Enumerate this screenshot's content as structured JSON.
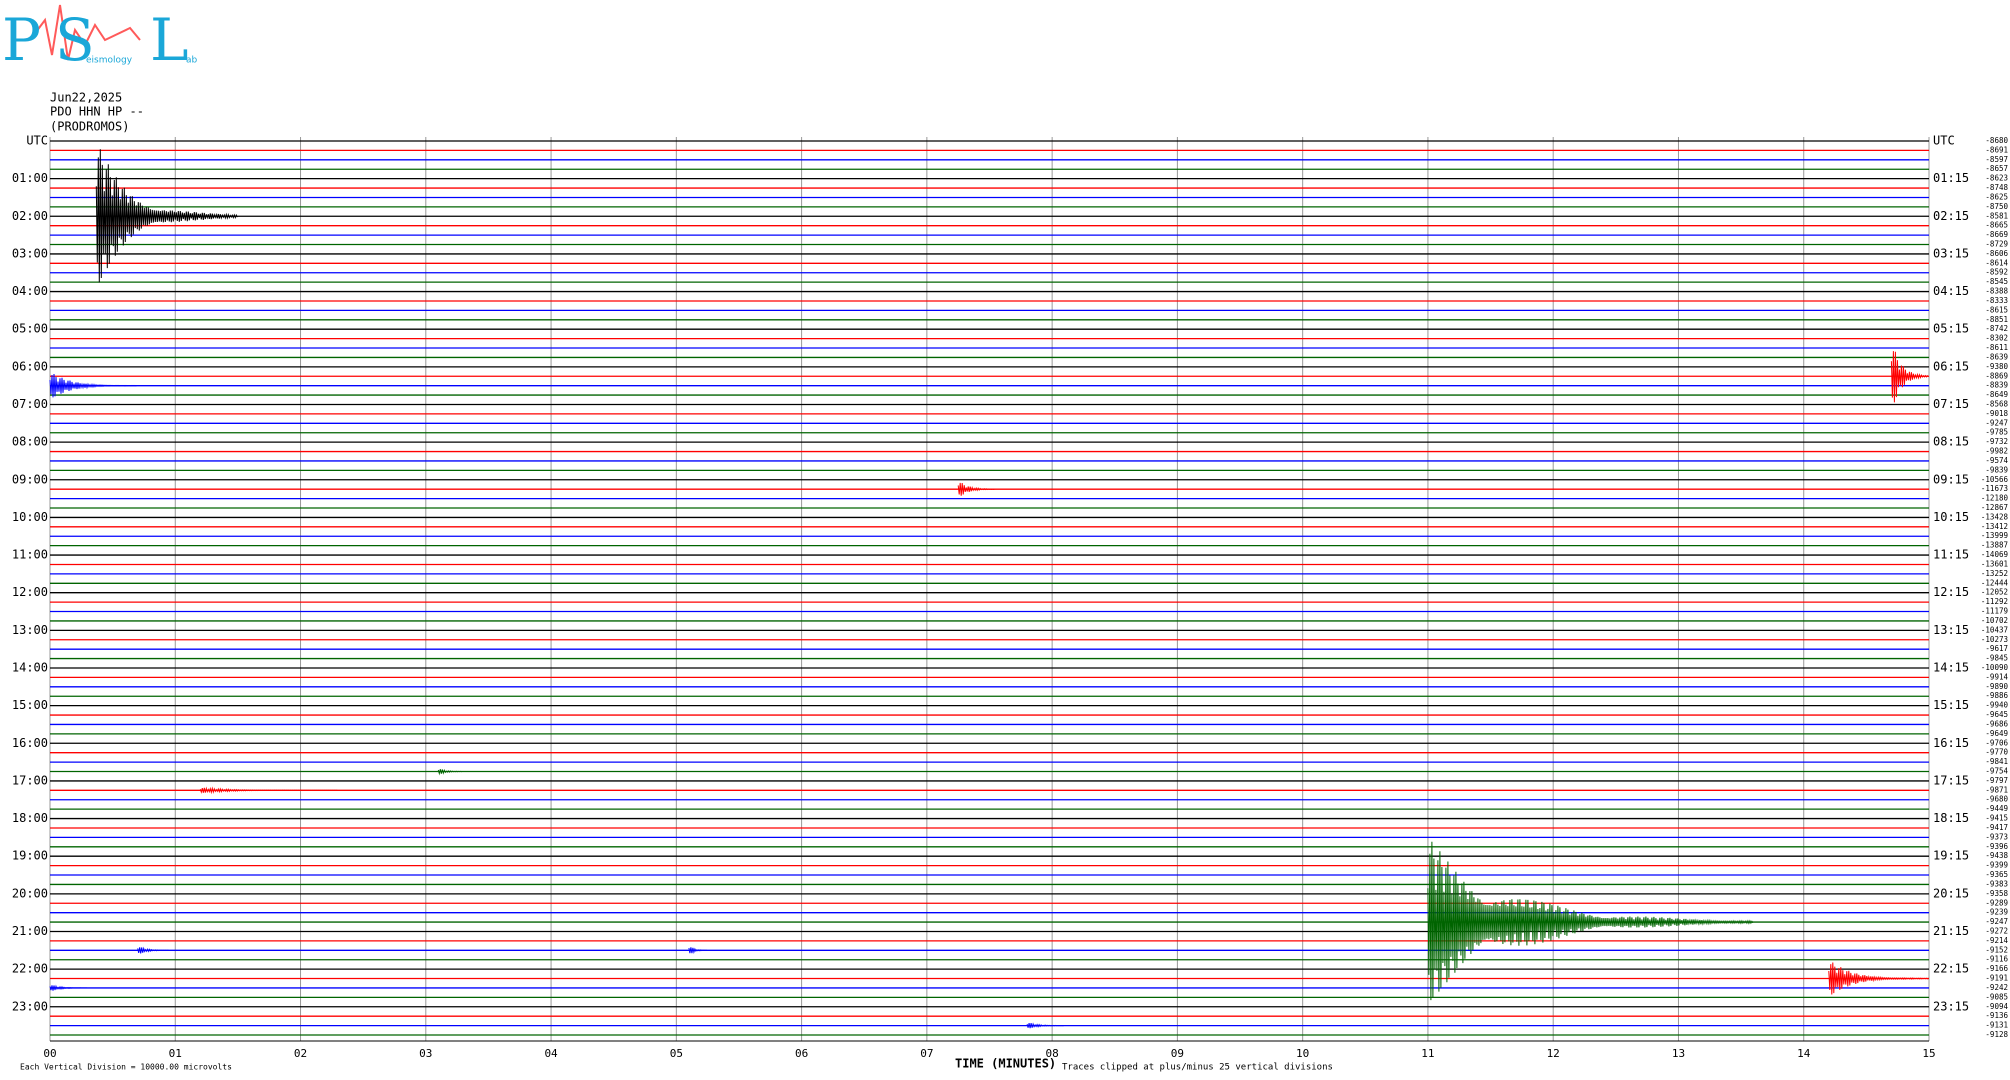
{
  "logo": {
    "letters": [
      "P",
      "S",
      "L"
    ],
    "fragments": [
      "eismology",
      "ab"
    ]
  },
  "header": {
    "date": "Jun22,2025",
    "station": "PDO HHN HP --",
    "site": "(PRODROMOS)"
  },
  "chart_data": {
    "type": "helicorder",
    "xlabel": "TIME (MINUTES)",
    "scale_note": "Each Vertical Division = 10000.00 microvolts",
    "clip_note": "Traces clipped at plus/minus 25 vertical divisions",
    "xlim": [
      0,
      15
    ],
    "xticks": [
      {
        "value": 0,
        "label": "00"
      },
      {
        "value": 1,
        "label": "01"
      },
      {
        "value": 2,
        "label": "02"
      },
      {
        "value": 3,
        "label": "03"
      },
      {
        "value": 4,
        "label": "04"
      },
      {
        "value": 5,
        "label": "05"
      },
      {
        "value": 6,
        "label": "06"
      },
      {
        "value": 7,
        "label": "07"
      },
      {
        "value": 8,
        "label": "08"
      },
      {
        "value": 9,
        "label": "09"
      },
      10,
      11,
      12,
      13,
      14,
      15
    ],
    "grid": true,
    "colors": [
      "#000000",
      "#ff0000",
      "#0000ff",
      "#006400"
    ],
    "rows_per_label": 4,
    "left_labels": [
      "UTC",
      "01:00",
      "02:00",
      "03:00",
      "04:00",
      "05:00",
      "06:00",
      "07:00",
      "08:00",
      "09:00",
      "10:00",
      "11:00",
      "12:00",
      "13:00",
      "14:00",
      "15:00",
      "16:00",
      "17:00",
      "18:00",
      "19:00",
      "20:00",
      "21:00",
      "22:00",
      "23:00"
    ],
    "right_labels": [
      "UTC",
      "01:15",
      "02:15",
      "03:15",
      "04:15",
      "05:15",
      "06:15",
      "07:15",
      "08:15",
      "09:15",
      "10:15",
      "11:15",
      "12:15",
      "13:15",
      "14:15",
      "15:15",
      "16:15",
      "17:15",
      "18:15",
      "19:15",
      "20:15",
      "21:15",
      "22:15",
      "23:15"
    ],
    "offsets": [
      -8680,
      -8691,
      -8597,
      -8657,
      -8623,
      -8748,
      -8625,
      -8750,
      -8581,
      -8665,
      -8669,
      -8729,
      -8606,
      -8614,
      -8592,
      -8545,
      -8388,
      -8333,
      -8615,
      -8851,
      -8742,
      -8302,
      -8611,
      -8639,
      -9380,
      -8869,
      -8839,
      -8649,
      -8568,
      -9018,
      -9247,
      -9785,
      -9732,
      -9982,
      -9574,
      -9839,
      -10566,
      -11673,
      -12180,
      -12867,
      -13428,
      -13412,
      -13999,
      -13887,
      -14069,
      -13601,
      -13252,
      -12444,
      -12052,
      -11292,
      -11179,
      -10702,
      -10437,
      -10273,
      -9617,
      -9845,
      -10090,
      -9914,
      -9890,
      -9886,
      -9940,
      -9645,
      -9686,
      -9649,
      -9706,
      -9770,
      -9841,
      -9754,
      -9797,
      -9871,
      -9680,
      -9449,
      -9415,
      -9417,
      -9373,
      -9396,
      -9438,
      -9399,
      -9365,
      -9383,
      -9358,
      -9289,
      -9239,
      -9247,
      -9272,
      -9214,
      -9152,
      -9116,
      -9166,
      -9191,
      -9242,
      -9085,
      -9094,
      -9136,
      -9131,
      -9128
    ],
    "events": [
      {
        "row": 8,
        "start": 0.37,
        "end": 1.5,
        "amplitude": 8
      },
      {
        "row": 25,
        "start": 14.7,
        "end": 15,
        "amplitude": 4
      },
      {
        "row": 26,
        "start": 0,
        "end": 0.7,
        "amplitude": 1.5
      },
      {
        "row": 37,
        "start": 7.25,
        "end": 7.55,
        "amplitude": 1
      },
      {
        "row": 67,
        "start": 3.1,
        "end": 3.3,
        "amplitude": 0.4
      },
      {
        "row": 69,
        "start": 1.2,
        "end": 2.3,
        "amplitude": 0.3
      },
      {
        "row": 83,
        "start": 11,
        "end": 13.6,
        "amplitude": 9
      },
      {
        "row": 86,
        "start": 0.7,
        "end": 0.95,
        "amplitude": 0.5
      },
      {
        "row": 86,
        "start": 5.1,
        "end": 5.25,
        "amplitude": 0.6
      },
      {
        "row": 89,
        "start": 14.2,
        "end": 15,
        "amplitude": 2
      },
      {
        "row": 90,
        "start": 0,
        "end": 0.3,
        "amplitude": 0.4
      },
      {
        "row": 94,
        "start": 7.8,
        "end": 8.1,
        "amplitude": 0.4
      }
    ]
  }
}
